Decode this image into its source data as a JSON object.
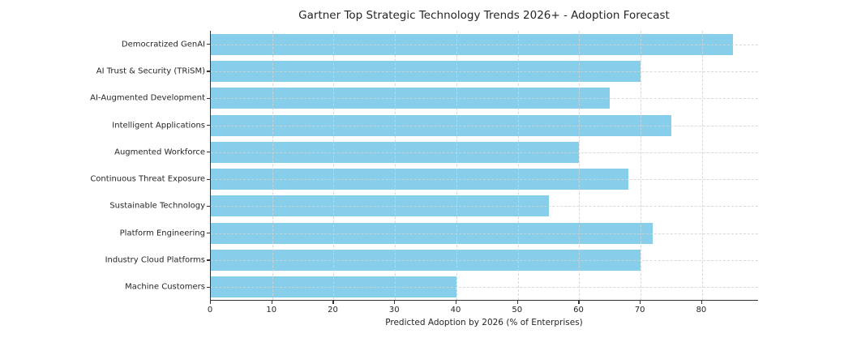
{
  "chart_data": {
    "type": "bar",
    "orientation": "horizontal",
    "title": "Gartner Top Strategic Technology Trends 2026+ - Adoption Forecast",
    "xlabel": "Predicted Adoption by 2026 (% of Enterprises)",
    "ylabel": "",
    "categories": [
      "Democratized GenAI",
      "AI Trust & Security (TRiSM)",
      "AI-Augmented Development",
      "Intelligent Applications",
      "Augmented Workforce",
      "Continuous Threat Exposure",
      "Sustainable Technology",
      "Platform Engineering",
      "Industry Cloud Platforms",
      "Machine Customers"
    ],
    "values": [
      85,
      70,
      65,
      75,
      60,
      68,
      55,
      72,
      70,
      40
    ],
    "xticks": [
      0,
      10,
      20,
      30,
      40,
      50,
      60,
      70,
      80
    ],
    "xlim": [
      0,
      89.25
    ],
    "bar_color": "#87CEEB",
    "grid": "dashed-both-axes",
    "grid_color": "#d3d3d3",
    "legend": "none",
    "background_color": "#ffffff"
  }
}
